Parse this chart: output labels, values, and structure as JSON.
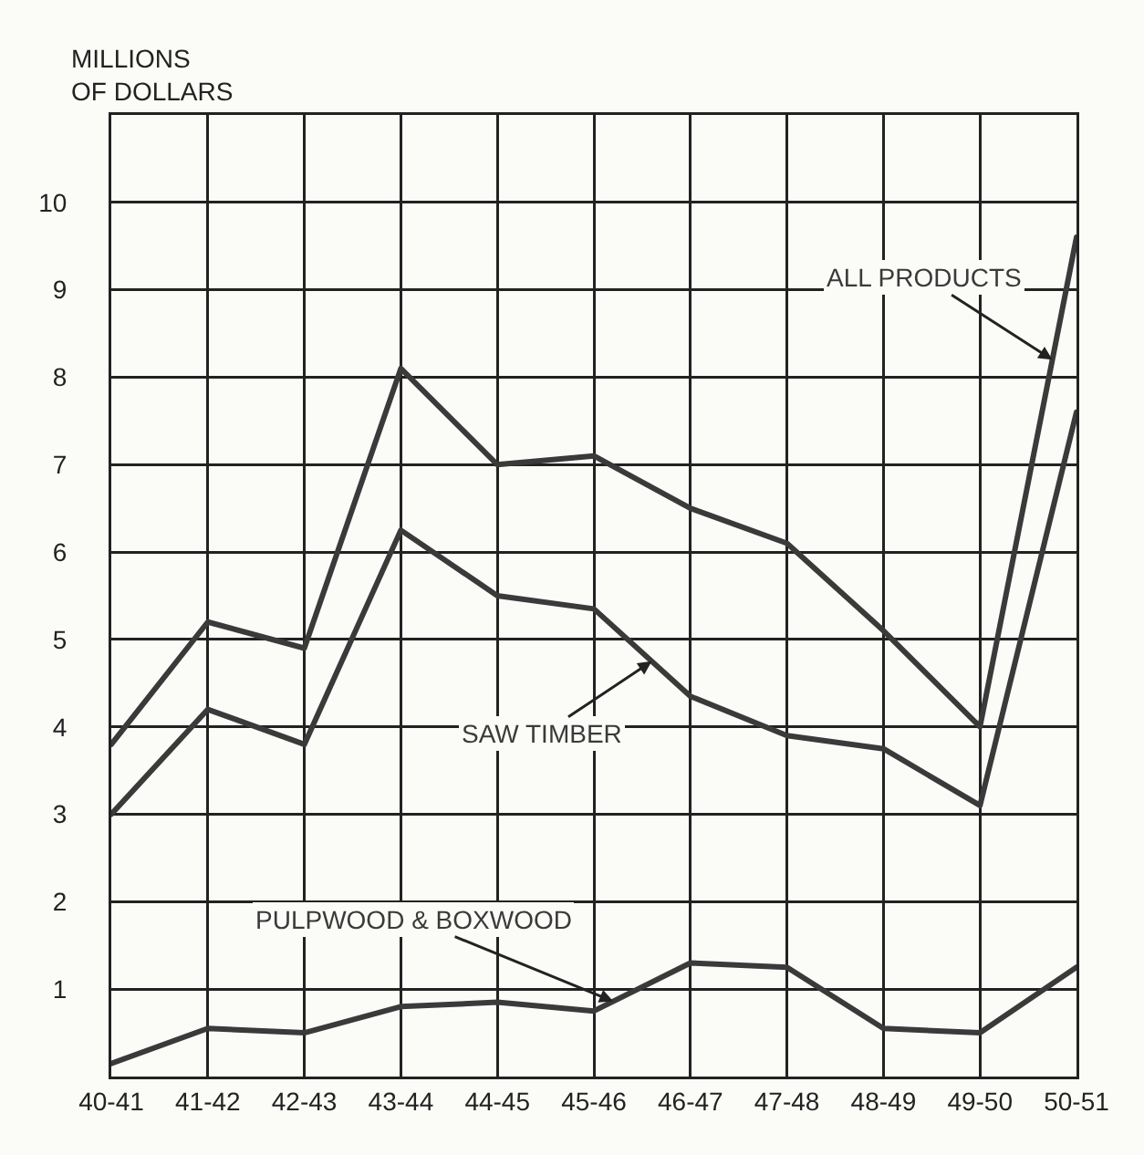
{
  "chart_data": {
    "type": "line",
    "ylabel": "MILLIONS\nOF DOLLARS",
    "categories": [
      "40-41",
      "41-42",
      "42-43",
      "43-44",
      "44-45",
      "45-46",
      "46-47",
      "47-48",
      "48-49",
      "49-50",
      "50-51"
    ],
    "series": [
      {
        "name": "ALL PRODUCTS",
        "color": "#3a3a3a",
        "values": [
          3.8,
          5.2,
          4.9,
          8.1,
          7.0,
          7.1,
          6.5,
          6.1,
          5.1,
          4.0,
          9.6
        ]
      },
      {
        "name": "SAW TIMBER",
        "color": "#3a3a3a",
        "values": [
          3.0,
          4.2,
          3.8,
          6.25,
          5.5,
          5.35,
          4.35,
          3.9,
          3.75,
          3.1,
          7.6
        ]
      },
      {
        "name": "PULPWOOD & BOXWOOD",
        "color": "#3a3a3a",
        "values": [
          0.15,
          0.55,
          0.5,
          0.8,
          0.85,
          0.75,
          1.3,
          1.25,
          0.55,
          0.5,
          1.25
        ]
      }
    ],
    "ylim": [
      0,
      11
    ],
    "yticks": [
      {
        "value": 0,
        "label": null
      },
      1,
      2,
      3,
      4,
      5,
      6,
      7,
      8,
      9,
      10,
      {
        "value": 11,
        "label": null
      }
    ],
    "grid": true,
    "legend": false,
    "marker": "none",
    "line_style": "solid"
  }
}
